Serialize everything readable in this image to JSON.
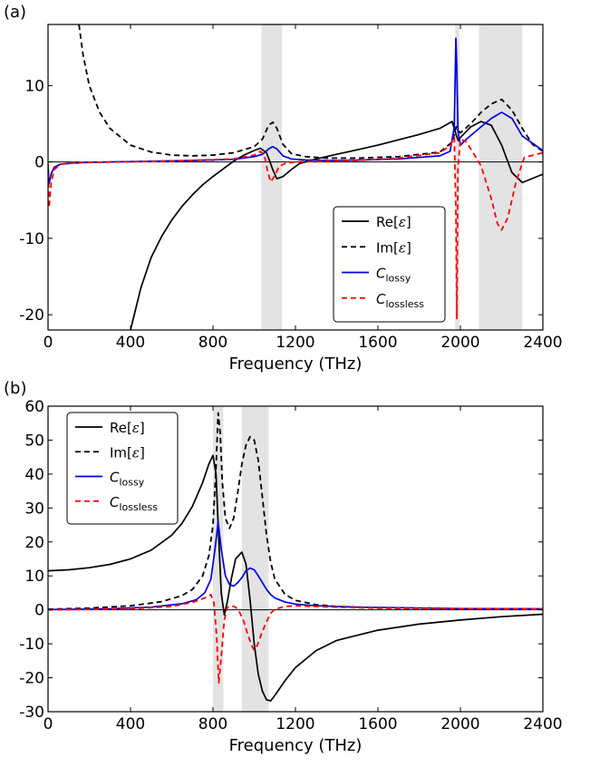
{
  "chart_data": [
    {
      "type": "line",
      "panel_label": "(a)",
      "xlabel": "Frequency (THz)",
      "ylabel": "",
      "xlim": [
        0,
        2400
      ],
      "ylim": [
        -22,
        18
      ],
      "xticks": [
        0,
        400,
        800,
        1200,
        1600,
        2000,
        2400
      ],
      "yticks": [
        -20,
        -10,
        0,
        10
      ],
      "grid": false,
      "legend_position": "lower-right",
      "shaded_bands": [
        [
          1035,
          1135
        ],
        [
          1975,
          1995
        ],
        [
          2090,
          2300
        ]
      ],
      "series": [
        {
          "name": "Re[ε]",
          "name_main": "Re[",
          "name_sym": "ε",
          "name_close": "]",
          "color": "#000000",
          "dash": "solid",
          "x": [
            400,
            450,
            500,
            550,
            600,
            650,
            700,
            750,
            800,
            850,
            900,
            950,
            1000,
            1030,
            1060,
            1090,
            1110,
            1140,
            1180,
            1220,
            1300,
            1400,
            1500,
            1600,
            1700,
            1800,
            1900,
            1960,
            1980,
            1990,
            2000,
            2050,
            2100,
            2150,
            2200,
            2250,
            2300,
            2400
          ],
          "y": [
            -22,
            -16.5,
            -12.5,
            -9.8,
            -7.6,
            -5.8,
            -4.3,
            -3.0,
            -1.9,
            -0.9,
            0.1,
            0.9,
            1.5,
            1.8,
            1.2,
            -1.0,
            -2.2,
            -1.9,
            -1.0,
            -0.2,
            0.4,
            1.0,
            1.6,
            2.2,
            2.9,
            3.6,
            4.4,
            5.3,
            3.5,
            2.8,
            3.2,
            4.6,
            5.3,
            4.8,
            2.2,
            -1.4,
            -2.7,
            -1.6
          ]
        },
        {
          "name": "Im[ε]",
          "name_main": "Im[",
          "name_sym": "ε",
          "name_close": "]",
          "color": "#000000",
          "dash": "dashed",
          "x": [
            150,
            170,
            200,
            250,
            300,
            400,
            500,
            600,
            700,
            800,
            900,
            1000,
            1040,
            1070,
            1090,
            1110,
            1140,
            1180,
            1250,
            1350,
            1500,
            1700,
            1900,
            1960,
            1980,
            2000,
            2050,
            2100,
            2150,
            2200,
            2250,
            2300,
            2350,
            2400
          ],
          "y": [
            18,
            14,
            10,
            6.5,
            4.4,
            2.2,
            1.3,
            0.9,
            0.8,
            0.9,
            1.2,
            2.0,
            3.0,
            4.8,
            5.2,
            4.4,
            2.3,
            1.1,
            0.7,
            0.5,
            0.5,
            0.7,
            1.3,
            2.6,
            4.6,
            3.8,
            5.0,
            6.5,
            7.6,
            8.2,
            6.8,
            4.4,
            2.3,
            1.4
          ]
        },
        {
          "name": "C_lossy",
          "name_main": "C",
          "name_sub": "lossy",
          "color": "#0000dd",
          "dash": "solid",
          "x": [
            0,
            5,
            15,
            30,
            60,
            120,
            200,
            400,
            600,
            800,
            900,
            1000,
            1040,
            1070,
            1090,
            1110,
            1140,
            1180,
            1250,
            1350,
            1500,
            1700,
            1900,
            1950,
            1970,
            1978,
            1982,
            1988,
            2000,
            2030,
            2100,
            2150,
            2200,
            2250,
            2300,
            2400
          ],
          "y": [
            -0.3,
            -2.9,
            -1.6,
            -0.7,
            -0.3,
            -0.15,
            -0.05,
            0.05,
            0.15,
            0.25,
            0.35,
            0.7,
            1.0,
            1.7,
            2.0,
            1.7,
            0.8,
            0.4,
            0.25,
            0.2,
            0.25,
            0.4,
            0.8,
            1.4,
            4.5,
            16.2,
            13.0,
            4.0,
            2.2,
            3.0,
            4.6,
            5.7,
            6.5,
            5.7,
            3.4,
            1.5
          ]
        },
        {
          "name": "C_lossless",
          "name_main": "C",
          "name_sub": "lossless",
          "color": "#ff0000",
          "dash": "dashed",
          "x": [
            0,
            5,
            15,
            30,
            60,
            120,
            300,
            600,
            900,
            1000,
            1030,
            1050,
            1065,
            1080,
            1100,
            1120,
            1150,
            1200,
            1300,
            1500,
            1700,
            1900,
            1950,
            1970,
            1978,
            1983,
            1988,
            2000,
            2030,
            2100,
            2150,
            2180,
            2200,
            2230,
            2270,
            2310,
            2400
          ],
          "y": [
            -0.3,
            -6.0,
            -2.8,
            -1.0,
            -0.3,
            -0.1,
            0.0,
            0.1,
            0.4,
            0.9,
            1.4,
            0.8,
            -1.2,
            -2.6,
            -1.8,
            -0.6,
            -0.2,
            0.0,
            0.1,
            0.2,
            0.5,
            1.2,
            2.1,
            3.2,
            -6.0,
            -20.5,
            -1.0,
            3.0,
            2.6,
            -0.5,
            -4.8,
            -8.1,
            -8.9,
            -7.3,
            -2.6,
            0.6,
            1.2
          ]
        }
      ]
    },
    {
      "type": "line",
      "panel_label": "(b)",
      "xlabel": "Frequency (THz)",
      "ylabel": "",
      "xlim": [
        0,
        2400
      ],
      "ylim": [
        -30,
        60
      ],
      "xticks": [
        0,
        400,
        800,
        1200,
        1600,
        2000,
        2400
      ],
      "yticks": [
        -30,
        -20,
        -10,
        0,
        10,
        20,
        30,
        40,
        50,
        60
      ],
      "grid": false,
      "legend_position": "upper-left",
      "shaded_bands": [
        [
          800,
          850
        ],
        [
          940,
          1070
        ]
      ],
      "series": [
        {
          "name": "Re[ε]",
          "name_main": "Re[",
          "name_sym": "ε",
          "name_close": "]",
          "color": "#000000",
          "dash": "solid",
          "x": [
            0,
            100,
            200,
            300,
            400,
            500,
            600,
            650,
            700,
            750,
            780,
            800,
            815,
            825,
            840,
            855,
            870,
            890,
            910,
            940,
            960,
            980,
            1000,
            1020,
            1040,
            1060,
            1080,
            1100,
            1150,
            1200,
            1300,
            1400,
            1600,
            1800,
            2000,
            2200,
            2400
          ],
          "y": [
            11.5,
            11.8,
            12.4,
            13.4,
            15.0,
            17.6,
            22.0,
            25.5,
            30.5,
            37.5,
            43.0,
            45.5,
            40.0,
            25.0,
            5.0,
            -1.5,
            2.5,
            9.5,
            15.0,
            17.0,
            13.5,
            3.0,
            -10.0,
            -19.0,
            -24.0,
            -26.5,
            -26.8,
            -25.2,
            -20.8,
            -17.0,
            -12.0,
            -9.0,
            -6.0,
            -4.2,
            -3.0,
            -2.0,
            -1.3
          ]
        },
        {
          "name": "Im[ε]",
          "name_main": "Im[",
          "name_sym": "ε",
          "name_close": "]",
          "color": "#000000",
          "dash": "dashed",
          "x": [
            0,
            200,
            400,
            550,
            650,
            700,
            750,
            780,
            800,
            815,
            825,
            835,
            845,
            860,
            880,
            900,
            920,
            940,
            960,
            980,
            1000,
            1020,
            1040,
            1060,
            1080,
            1100,
            1150,
            1200,
            1300,
            1400,
            1600,
            2000,
            2400
          ],
          "y": [
            0.2,
            0.5,
            1.2,
            2.4,
            4.2,
            6.0,
            10.0,
            16.0,
            25.0,
            42.0,
            58.0,
            52.0,
            38.0,
            27.0,
            24.0,
            27.0,
            34.5,
            43.0,
            48.5,
            51.0,
            50.0,
            44.0,
            33.0,
            22.0,
            14.0,
            9.0,
            4.5,
            2.8,
            1.5,
            1.0,
            0.6,
            0.3,
            0.2
          ]
        },
        {
          "name": "C_lossy",
          "name_main": "C",
          "name_sub": "lossy",
          "color": "#0000dd",
          "dash": "solid",
          "x": [
            0,
            300,
            500,
            650,
            720,
            760,
            790,
            810,
            825,
            840,
            860,
            880,
            900,
            920,
            940,
            960,
            980,
            1000,
            1020,
            1040,
            1060,
            1080,
            1100,
            1150,
            1200,
            1300,
            1500,
            2000,
            2400
          ],
          "y": [
            0.1,
            0.3,
            0.8,
            1.8,
            3.0,
            5.0,
            9.0,
            18.0,
            26.0,
            18.0,
            10.0,
            7.5,
            7.0,
            8.0,
            9.5,
            11.5,
            12.3,
            11.8,
            10.0,
            8.0,
            6.0,
            4.5,
            3.5,
            2.3,
            1.7,
            1.2,
            0.8,
            0.4,
            0.3
          ]
        },
        {
          "name": "C_lossless",
          "name_main": "C",
          "name_sub": "lossless",
          "color": "#ff0000",
          "dash": "dashed",
          "x": [
            0,
            400,
            600,
            700,
            760,
            790,
            805,
            818,
            828,
            840,
            855,
            870,
            890,
            910,
            930,
            950,
            970,
            990,
            1000,
            1015,
            1035,
            1060,
            1080,
            1100,
            1150,
            1200,
            1300,
            1400,
            1600,
            2000,
            2400
          ],
          "y": [
            0.0,
            0.3,
            1.0,
            2.2,
            3.5,
            4.5,
            2.0,
            -8.0,
            -21.5,
            -14.0,
            -3.0,
            0.8,
            1.2,
            0.8,
            -0.8,
            -3.5,
            -7.5,
            -10.8,
            -11.8,
            -10.5,
            -7.0,
            -3.5,
            -1.0,
            0.2,
            1.0,
            1.2,
            1.0,
            0.8,
            0.5,
            0.3,
            0.2
          ]
        }
      ]
    }
  ]
}
